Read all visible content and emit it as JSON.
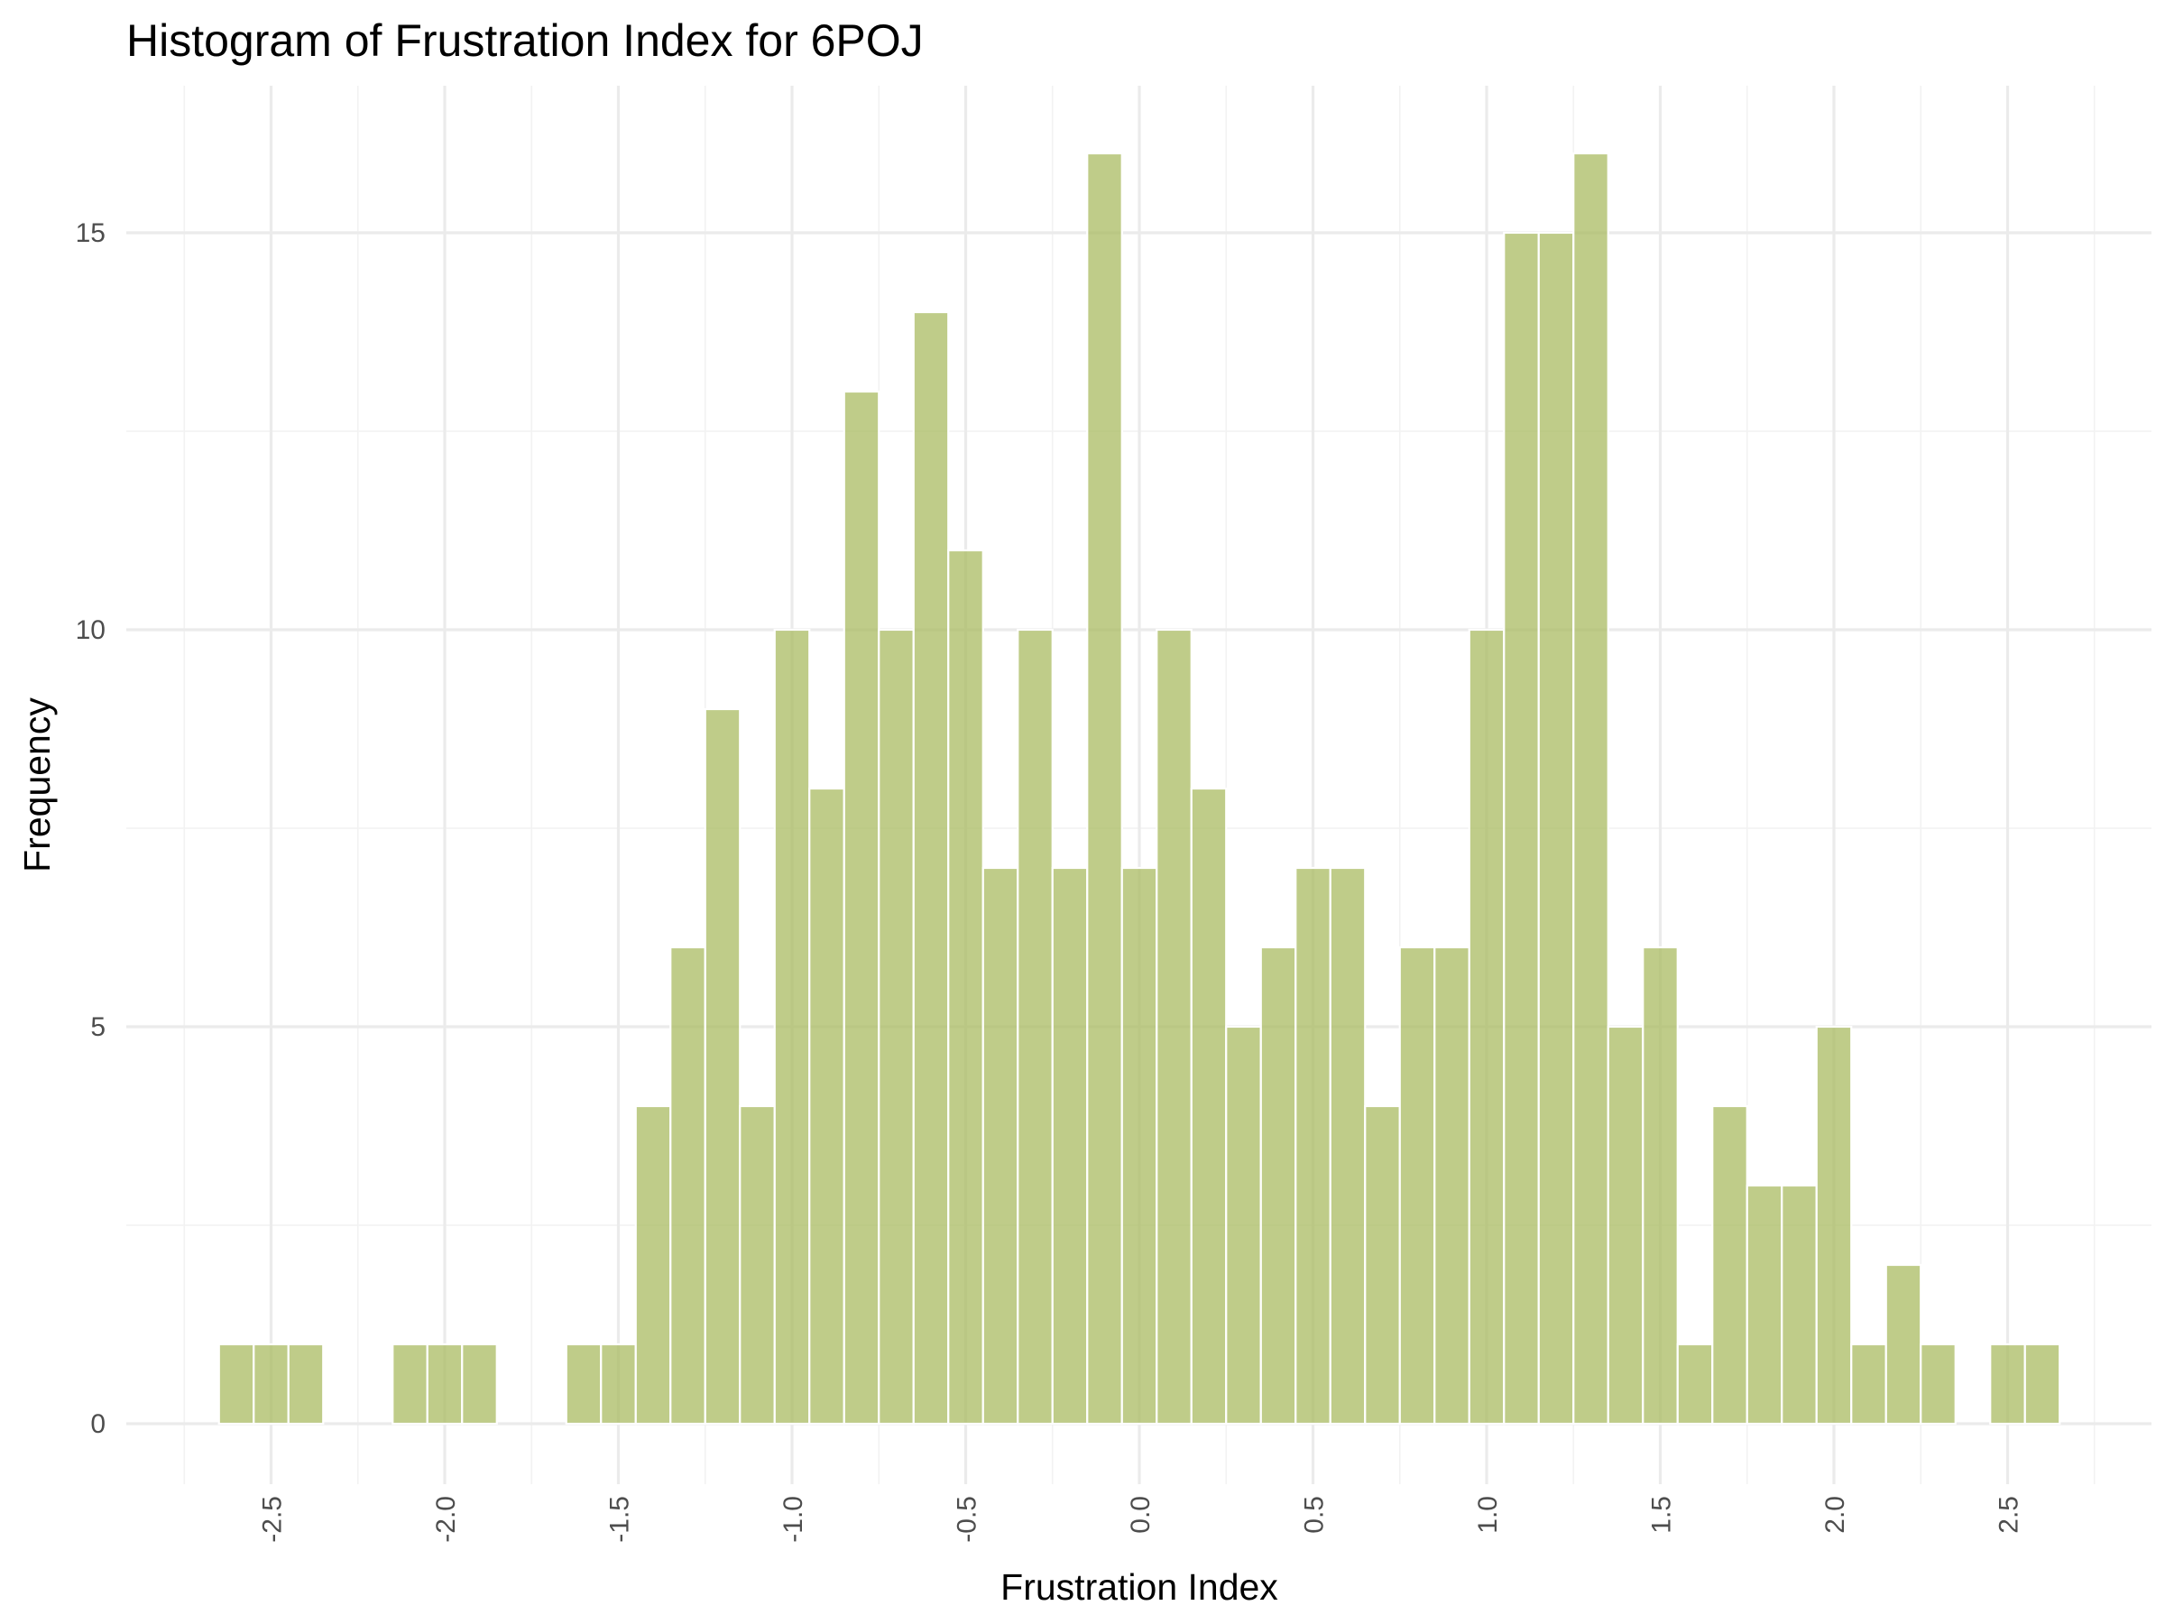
{
  "chart_data": {
    "type": "bar",
    "title": "Histogram of Frustration Index for 6POJ",
    "xlabel": "Frustration Index",
    "ylabel": "Frequency",
    "bar_color": "#a9bb61",
    "xlim": [
      -2.75,
      2.75
    ],
    "ylim": [
      0,
      16
    ],
    "x_ticks": [
      -2.5,
      -2.0,
      -1.5,
      -1.0,
      -0.5,
      0.0,
      0.5,
      1.0,
      1.5,
      2.0,
      2.5
    ],
    "x_tick_labels": [
      "-2.5",
      "-2.0",
      "-1.5",
      "-1.0",
      "-0.5",
      "0.0",
      "0.5",
      "1.0",
      "1.5",
      "2.0",
      "2.5"
    ],
    "y_ticks": [
      0,
      5,
      10,
      15
    ],
    "y_tick_labels": [
      "0",
      "5",
      "10",
      "15"
    ],
    "grid": true,
    "bin_width": 0.1,
    "x": [
      -2.6,
      -2.5,
      -2.4,
      -2.3,
      -2.2,
      -2.1,
      -2.0,
      -1.9,
      -1.8,
      -1.7,
      -1.6,
      -1.5,
      -1.4,
      -1.3,
      -1.2,
      -1.1,
      -1.0,
      -0.9,
      -0.8,
      -0.7,
      -0.6,
      -0.5,
      -0.4,
      -0.3,
      -0.2,
      -0.1,
      0.0,
      0.1,
      0.2,
      0.3,
      0.4,
      0.5,
      0.6,
      0.7,
      0.8,
      0.9,
      1.0,
      1.1,
      1.2,
      1.3,
      1.4,
      1.5,
      1.6,
      1.7,
      1.8,
      1.9,
      2.0,
      2.1,
      2.2,
      2.3,
      2.4,
      2.5,
      2.6
    ],
    "values": [
      1,
      1,
      1,
      0,
      0,
      1,
      1,
      1,
      0,
      0,
      1,
      1,
      4,
      6,
      9,
      4,
      10,
      8,
      13,
      10,
      14,
      11,
      7,
      10,
      7,
      16,
      7,
      10,
      8,
      5,
      6,
      7,
      7,
      4,
      6,
      6,
      10,
      15,
      15,
      16,
      5,
      6,
      1,
      4,
      3,
      3,
      5,
      1,
      2,
      1,
      0,
      1,
      1
    ]
  }
}
